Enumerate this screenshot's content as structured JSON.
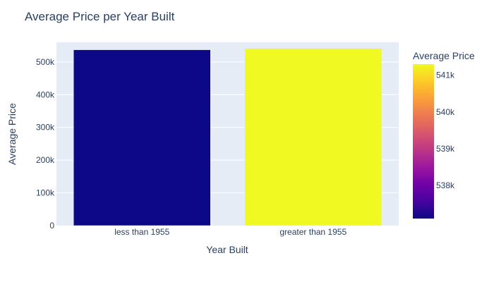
{
  "chart_data": {
    "type": "bar",
    "title": "Average Price per Year Built",
    "xlabel": "Year Built",
    "ylabel": "Average Price",
    "categories": [
      "less than 1955",
      "greater than 1955"
    ],
    "values": [
      537100,
      541300
    ],
    "ylim": [
      0,
      560000
    ],
    "yticks": [
      0,
      100000,
      200000,
      300000,
      400000,
      500000
    ],
    "ytick_labels": [
      "0",
      "100k",
      "200k",
      "300k",
      "400k",
      "500k"
    ],
    "grid": true,
    "plot_background": "#e5ecf6",
    "colorbar": {
      "title": "Average Price",
      "range": [
        537100,
        541300
      ],
      "ticks": [
        538000,
        539000,
        540000,
        541000
      ],
      "tick_labels": [
        "538k",
        "539k",
        "540k",
        "541k"
      ],
      "colorscale": [
        "#0d0887",
        "#46039f",
        "#7201a8",
        "#9c179e",
        "#bd3786",
        "#d8576b",
        "#ed7953",
        "#fb9f3a",
        "#fdca26",
        "#f0f921"
      ]
    }
  }
}
